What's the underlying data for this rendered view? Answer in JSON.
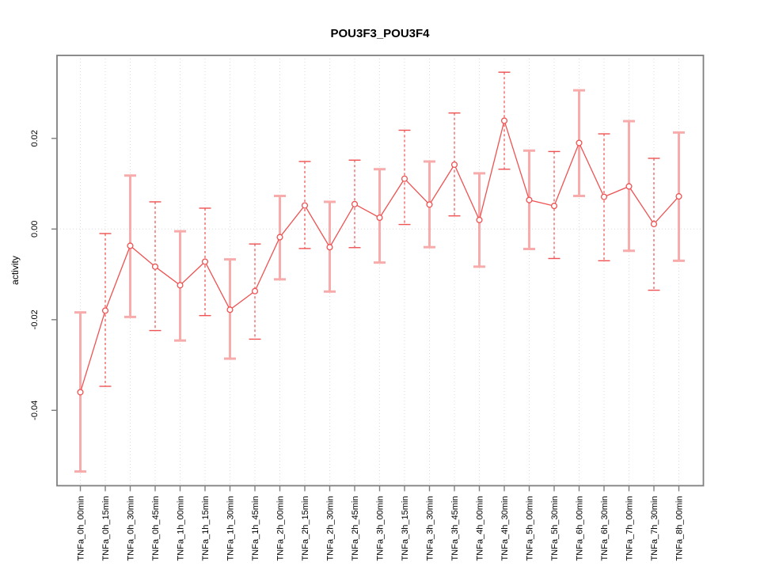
{
  "chart_data": {
    "type": "line",
    "title": "POU3F3_POU3F4",
    "xlabel": "",
    "ylabel": "activity",
    "legend": "none",
    "grid": "vertical dotted gridline at every category; dotted horizontal line at y=0 only",
    "marker": "open-circle",
    "error_bars": true,
    "error_bar_style_alternation": [
      "solid-lightpink-thick",
      "dashed-red-thin"
    ],
    "ylim": [
      -0.0566,
      0.0384
    ],
    "yticks": [
      {
        "value": 0.02,
        "label": "0.02"
      },
      {
        "value": 0.0,
        "label": "0.00"
      },
      {
        "value": -0.02,
        "label": "-0.02"
      },
      {
        "value": -0.04,
        "label": "-0.04"
      }
    ],
    "categories": [
      "TNFa_0h_00min",
      "TNFa_0h_15min",
      "TNFa_0h_30min",
      "TNFa_0h_45min",
      "TNFa_1h_00min",
      "TNFa_1h_15min",
      "TNFa_1h_30min",
      "TNFa_1h_45min",
      "TNFa_2h_00min",
      "TNFa_2h_15min",
      "TNFa_2h_30min",
      "TNFa_2h_45min",
      "TNFa_3h_00min",
      "TNFa_3h_15min",
      "TNFa_3h_30min",
      "TNFa_3h_45min",
      "TNFa_4h_00min",
      "TNFa_4h_30min",
      "TNFa_5h_00min",
      "TNFa_5h_30min",
      "TNFa_6h_00min",
      "TNFa_6h_30min",
      "TNFa_7h_00min",
      "TNFa_7h_30min",
      "TNFa_8h_00min"
    ],
    "series": [
      {
        "name": "activity",
        "values": [
          -0.036,
          -0.018,
          -0.0037,
          -0.0083,
          -0.0124,
          -0.0072,
          -0.0178,
          -0.0137,
          -0.0018,
          0.0052,
          -0.004,
          0.0055,
          0.0025,
          0.0111,
          0.0054,
          0.0142,
          0.002,
          0.0239,
          0.0064,
          0.0051,
          0.019,
          0.0071,
          0.0094,
          0.0011,
          0.0072
        ],
        "err_high": [
          -0.0184,
          -0.001,
          0.0118,
          0.006,
          -0.0005,
          0.0046,
          -0.0067,
          -0.0033,
          0.0073,
          0.0149,
          0.006,
          0.0152,
          0.0132,
          0.0218,
          0.0149,
          0.0256,
          0.0123,
          0.0346,
          0.0173,
          0.0171,
          0.0306,
          0.021,
          0.0238,
          0.0156,
          0.0213
        ],
        "err_low": [
          -0.0535,
          -0.0347,
          -0.0194,
          -0.0224,
          -0.0246,
          -0.0191,
          -0.0286,
          -0.0243,
          -0.0111,
          -0.0043,
          -0.0138,
          -0.0041,
          -0.0074,
          0.001,
          -0.004,
          0.0029,
          -0.0083,
          0.0132,
          -0.0044,
          -0.0065,
          0.0073,
          -0.007,
          -0.0048,
          -0.0135,
          -0.007
        ]
      }
    ],
    "colors": {
      "series_red": "#ee5252",
      "error_band_pink": "#f7abab",
      "grid": "#dcdcdc",
      "frame": "#7f7f7f",
      "tick": "#7f7f7f",
      "text": "#000000",
      "background": "#ffffff"
    }
  }
}
